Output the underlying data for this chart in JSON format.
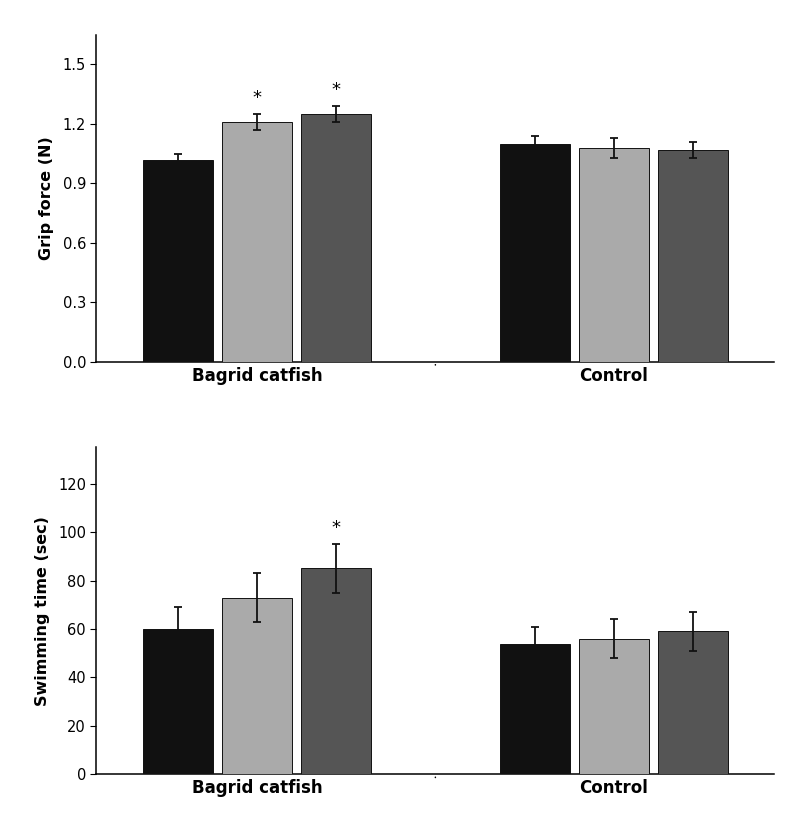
{
  "top": {
    "ylabel": "Grip force (N)",
    "xlabel_groups": [
      "Bagrid catfish",
      "Control"
    ],
    "ylim": [
      0.0,
      1.65
    ],
    "yticks": [
      0.0,
      0.3,
      0.6,
      0.9,
      1.2,
      1.5
    ],
    "values": {
      "bagrid": [
        1.02,
        1.21,
        1.25
      ],
      "control": [
        1.1,
        1.08,
        1.07
      ]
    },
    "errors": {
      "bagrid": [
        0.03,
        0.04,
        0.04
      ],
      "control": [
        0.04,
        0.05,
        0.04
      ]
    },
    "significance": {
      "bagrid": [
        false,
        true,
        true
      ],
      "control": [
        false,
        false,
        false
      ]
    }
  },
  "bottom": {
    "ylabel": "Swimming time (sec)",
    "xlabel_groups": [
      "Bagrid catfish",
      "Control"
    ],
    "ylim": [
      0,
      135
    ],
    "yticks": [
      0,
      20,
      40,
      60,
      80,
      100,
      120
    ],
    "values": {
      "bagrid": [
        60,
        73,
        85
      ],
      "control": [
        54,
        56,
        59
      ]
    },
    "errors": {
      "bagrid": [
        9,
        10,
        10
      ],
      "control": [
        7,
        8,
        8
      ]
    },
    "significance": {
      "bagrid": [
        false,
        false,
        true
      ],
      "control": [
        false,
        false,
        false
      ]
    }
  },
  "colors": [
    "#111111",
    "#aaaaaa",
    "#555555"
  ],
  "bar_width": 0.13,
  "group_centers": [
    0.42,
    1.05
  ],
  "offsets": [
    -0.14,
    0.0,
    0.14
  ],
  "edgecolor": "#111111",
  "figsize": [
    8.09,
    8.32
  ],
  "dpi": 100
}
